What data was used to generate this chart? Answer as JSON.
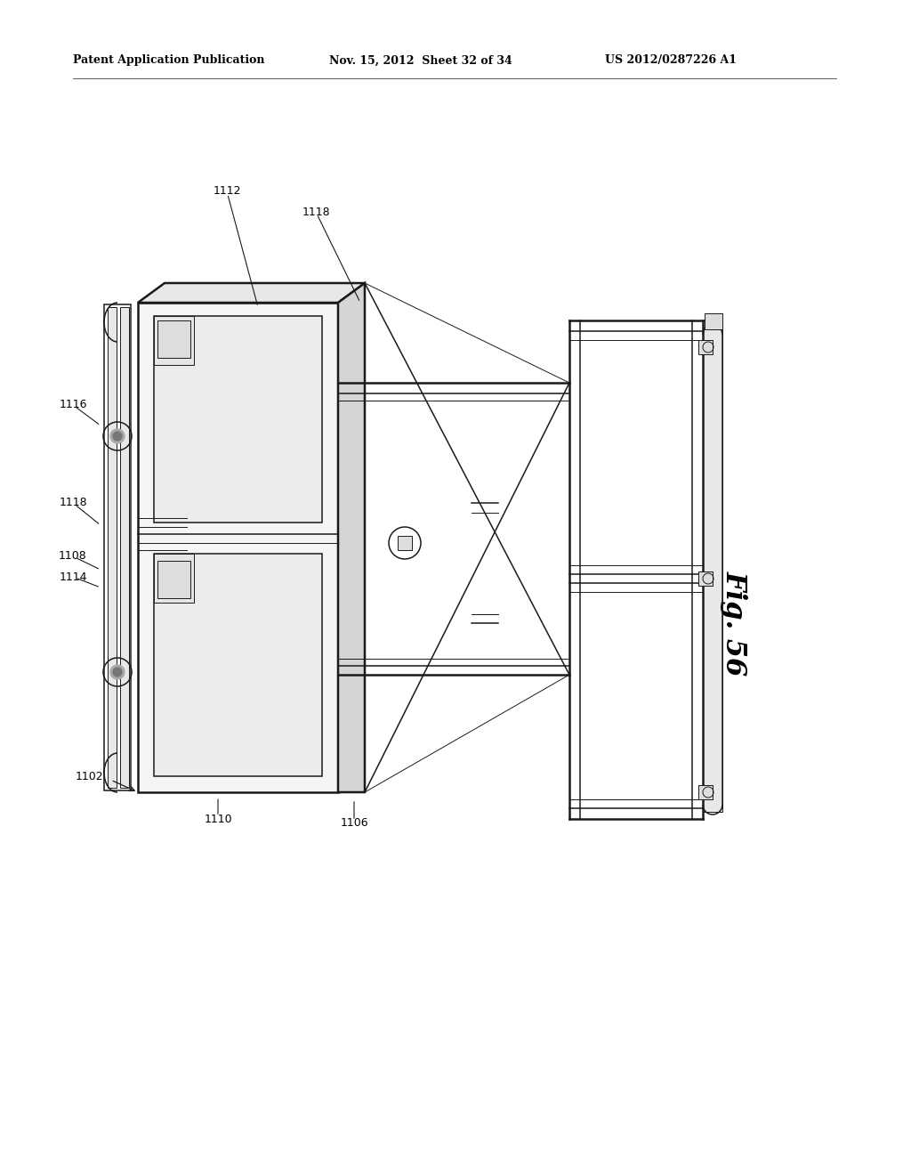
{
  "background_color": "#ffffff",
  "header_left": "Patent Application Publication",
  "header_mid": "Nov. 15, 2012  Sheet 32 of 34",
  "header_right": "US 2012/0287226 A1",
  "fig_label": "Fig. 56",
  "lw_thin": 0.7,
  "lw_med": 1.1,
  "lw_thick": 1.8,
  "color": "#1a1a1a",
  "label_fontsize": 9.0
}
